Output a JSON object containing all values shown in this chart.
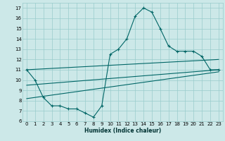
{
  "xlabel": "Humidex (Indice chaleur)",
  "xlim": [
    -0.5,
    23.5
  ],
  "ylim": [
    6,
    17.5
  ],
  "yticks": [
    6,
    7,
    8,
    9,
    10,
    11,
    12,
    13,
    14,
    15,
    16,
    17
  ],
  "xticks": [
    0,
    1,
    2,
    3,
    4,
    5,
    6,
    7,
    8,
    9,
    10,
    11,
    12,
    13,
    14,
    15,
    16,
    17,
    18,
    19,
    20,
    21,
    22,
    23
  ],
  "bg_color": "#cce8e8",
  "line_color": "#006666",
  "grid_color": "#99cccc",
  "line1_x": [
    0,
    1,
    2,
    3,
    4,
    5,
    6,
    7,
    8,
    9,
    10,
    11,
    12,
    13,
    14,
    15,
    16,
    17,
    18,
    19,
    20,
    21,
    22,
    23
  ],
  "line1_y": [
    11.0,
    10.0,
    8.3,
    7.5,
    7.5,
    7.2,
    7.2,
    6.8,
    6.4,
    7.5,
    12.5,
    13.0,
    14.0,
    16.2,
    17.0,
    16.6,
    15.0,
    13.3,
    12.8,
    12.8,
    12.8,
    12.3,
    11.0,
    11.0
  ],
  "line2_x": [
    0,
    23
  ],
  "line2_y": [
    11.0,
    12.0
  ],
  "line3_x": [
    0,
    23
  ],
  "line3_y": [
    9.5,
    11.0
  ],
  "line4_x": [
    0,
    23
  ],
  "line4_y": [
    8.2,
    10.8
  ]
}
